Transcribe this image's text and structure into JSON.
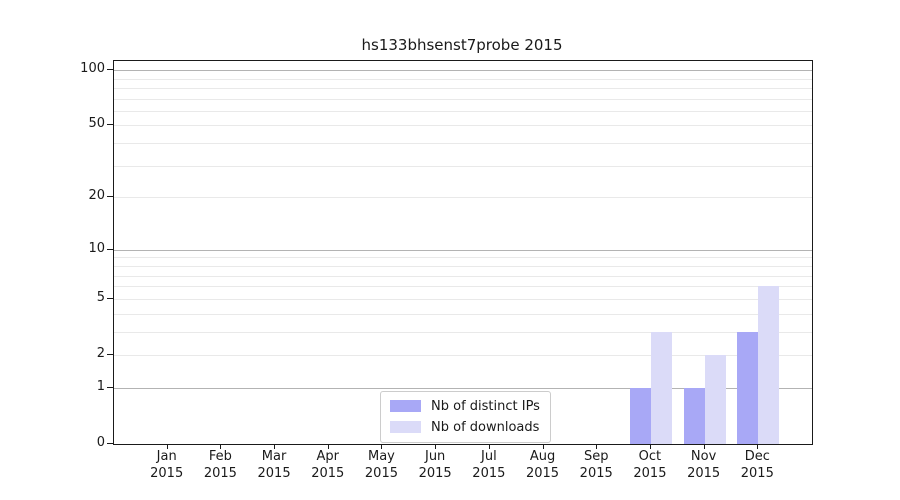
{
  "title": "hs133bhsenst7probe 2015",
  "colors": {
    "bar_distinct_ips": "#a8a8f6",
    "bar_downloads": "#dbdbf8",
    "grid_major": "#b3b3b3",
    "grid_minor": "#e9e9e9",
    "axis_line": "#1a1a1a",
    "text": "#1a1a1a",
    "legend_border": "#cccccc",
    "background": "#ffffff"
  },
  "chart_data": {
    "type": "bar",
    "title": "hs133bhsenst7probe 2015",
    "xlabel": "",
    "ylabel": "",
    "categories": [
      "Jan 2015",
      "Feb 2015",
      "Mar 2015",
      "Apr 2015",
      "May 2015",
      "Jun 2015",
      "Jul 2015",
      "Aug 2015",
      "Sep 2015",
      "Oct 2015",
      "Nov 2015",
      "Dec 2015"
    ],
    "series": [
      {
        "name": "Nb of distinct IPs",
        "color": "#a8a8f6",
        "values": [
          0,
          0,
          0,
          0,
          0,
          0,
          0,
          0,
          0,
          1,
          1,
          3
        ]
      },
      {
        "name": "Nb of downloads",
        "color": "#dbdbf8",
        "values": [
          0,
          0,
          0,
          0,
          0,
          0,
          0,
          0,
          0,
          3,
          2,
          6
        ]
      }
    ],
    "y_scale": "log1p",
    "ylim": [
      0,
      112
    ],
    "y_tick_labels": [
      0,
      1,
      2,
      5,
      10,
      20,
      50,
      100
    ],
    "y_major_gridlines": [
      1,
      10,
      100
    ],
    "y_minor_gridlines": [
      2,
      3,
      4,
      5,
      6,
      7,
      8,
      9,
      20,
      30,
      40,
      50,
      60,
      70,
      80,
      90
    ],
    "grid": "horizontal-only",
    "legend_position": "lower-center"
  },
  "legend": {
    "items": [
      {
        "label": "Nb of distinct IPs",
        "color": "#a8a8f6"
      },
      {
        "label": "Nb of downloads",
        "color": "#dbdbf8"
      }
    ]
  }
}
